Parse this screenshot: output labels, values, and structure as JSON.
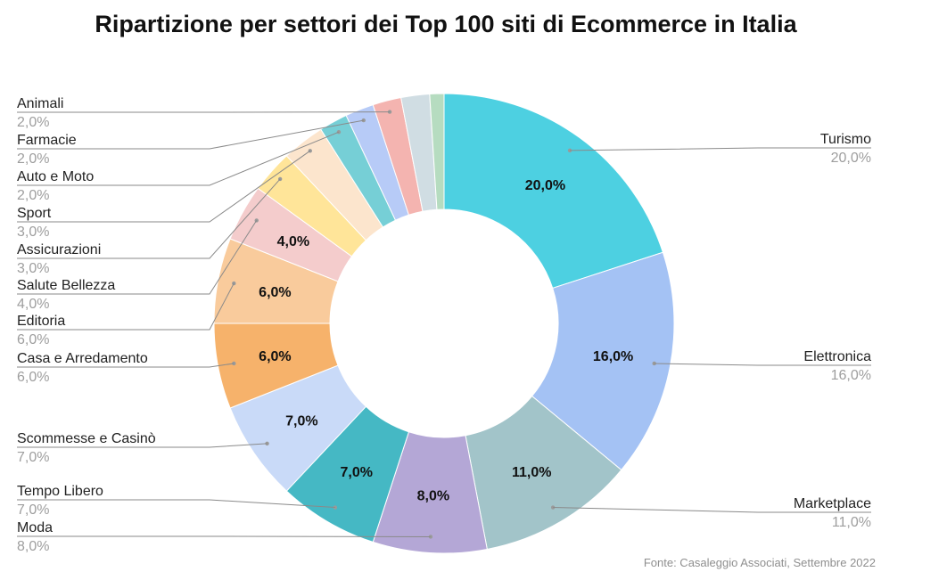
{
  "chart_data": {
    "type": "pie",
    "title": "Ripartizione per settori dei Top 100 siti di Ecommerce in Italia",
    "source": "Fonte: Casaleggio Associati, Settembre 2022",
    "slices": [
      {
        "label": "Turismo",
        "value": 20.0,
        "display": "20,0%",
        "color": "#4dd0e1"
      },
      {
        "label": "Elettronica",
        "value": 16.0,
        "display": "16,0%",
        "color": "#a4c2f4"
      },
      {
        "label": "Marketplace",
        "value": 11.0,
        "display": "11,0%",
        "color": "#a2c4c9"
      },
      {
        "label": "Moda",
        "value": 8.0,
        "display": "8,0%",
        "color": "#b4a7d6"
      },
      {
        "label": "Tempo Libero",
        "value": 7.0,
        "display": "7,0%",
        "color": "#45b8c4"
      },
      {
        "label": "Scommesse e Casinò",
        "value": 7.0,
        "display": "7,0%",
        "color": "#c9daf8"
      },
      {
        "label": "Casa e Arredamento",
        "value": 6.0,
        "display": "6,0%",
        "color": "#f6b26b"
      },
      {
        "label": "Editoria",
        "value": 6.0,
        "display": "6,0%",
        "color": "#f9cb9c"
      },
      {
        "label": "Salute Bellezza",
        "value": 4.0,
        "display": "4,0%",
        "color": "#f4cccc"
      },
      {
        "label": "Assicurazioni",
        "value": 3.0,
        "display": "3,0%",
        "color": "#ffe599"
      },
      {
        "label": "Sport",
        "value": 3.0,
        "display": "3,0%",
        "color": "#fce5cd"
      },
      {
        "label": "Auto e Moto",
        "value": 2.0,
        "display": "2,0%",
        "color": "#76cfd6"
      },
      {
        "label": "Farmacie",
        "value": 2.0,
        "display": "2,0%",
        "color": "#b7cbf7"
      },
      {
        "label": "Animali",
        "value": 2.0,
        "display": "2,0%",
        "color": "#f4b4b0"
      },
      {
        "label": "",
        "value": 2.0,
        "display": "",
        "color": "#d0dde3"
      },
      {
        "label": "",
        "value": 1.0,
        "display": "",
        "color": "#b6dcc0"
      }
    ],
    "inner_labels_shown": [
      "Turismo",
      "Elettronica",
      "Marketplace",
      "Moda",
      "Tempo Libero",
      "Scommesse e Casinò",
      "Casa e Arredamento",
      "Editoria",
      "Salute Bellezza"
    ]
  }
}
